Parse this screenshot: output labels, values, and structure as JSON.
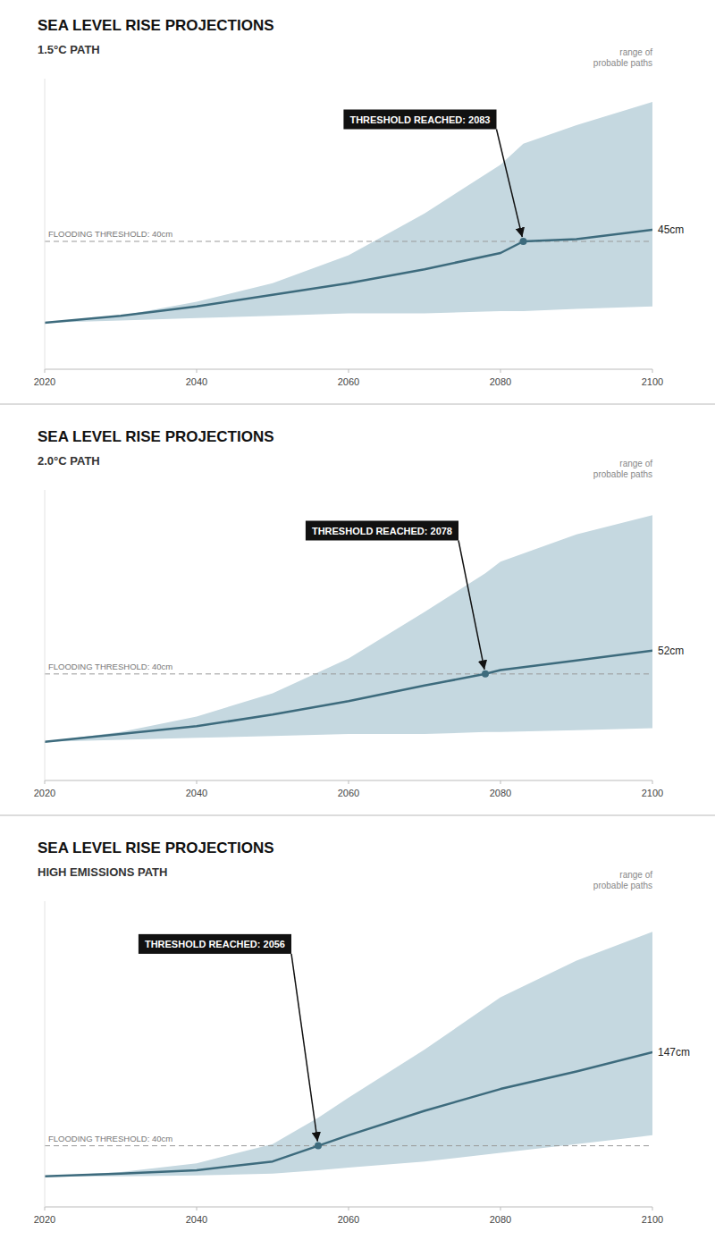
{
  "chart_data": [
    {
      "type": "line",
      "title": "SEA LEVEL RISE PROJECTIONS",
      "subtitle": "1.5°C PATH",
      "x": [
        2020,
        2030,
        2040,
        2050,
        2060,
        2070,
        2080,
        2083,
        2090,
        2100
      ],
      "xlim": [
        2020,
        2100
      ],
      "xticks": [
        2020,
        2040,
        2060,
        2080,
        2100
      ],
      "ylim": [
        -15,
        110
      ],
      "tick_labels": "x",
      "grid": false,
      "series": [
        {
          "values": [
            5,
            8,
            12,
            17,
            22,
            28,
            35,
            40,
            41,
            45
          ],
          "color": "#3d6b7d"
        }
      ],
      "band": {
        "lower": [
          5,
          6,
          7,
          8,
          9,
          9,
          10,
          10,
          11,
          12
        ],
        "upper": [
          5,
          8,
          14,
          22,
          34,
          52,
          73,
          82,
          90,
          100
        ],
        "color": "#c5d8e0",
        "label": "range of\nprobable paths"
      },
      "threshold": {
        "value": 40,
        "label": "FLOODING THRESHOLD: 40cm",
        "color": "#999999",
        "line_style": "dashed"
      },
      "annotations": [
        {
          "x": 2083,
          "y": 40,
          "text": "THRESHOLD REACHED: 2083",
          "marker": "dot"
        },
        {
          "x": 2100,
          "y": 45,
          "text": "45cm"
        }
      ]
    },
    {
      "type": "line",
      "title": "SEA LEVEL RISE PROJECTIONS",
      "subtitle": "2.0°C PATH",
      "x": [
        2020,
        2030,
        2040,
        2050,
        2060,
        2070,
        2078,
        2080,
        2090,
        2100
      ],
      "xlim": [
        2020,
        2100
      ],
      "xticks": [
        2020,
        2040,
        2060,
        2080,
        2100
      ],
      "ylim": [
        -15,
        135
      ],
      "tick_labels": "x",
      "grid": false,
      "series": [
        {
          "values": [
            5,
            9,
            13,
            19,
            26,
            34,
            40,
            42,
            47,
            52
          ],
          "color": "#3d6b7d"
        }
      ],
      "band": {
        "lower": [
          5,
          6,
          7,
          8,
          9,
          9,
          10,
          10,
          11,
          12
        ],
        "upper": [
          5,
          10,
          18,
          30,
          48,
          72,
          92,
          98,
          112,
          122
        ],
        "color": "#c5d8e0",
        "label": "range of\nprobable paths"
      },
      "threshold": {
        "value": 40,
        "label": "FLOODING THRESHOLD: 40cm",
        "color": "#999999",
        "line_style": "dashed"
      },
      "annotations": [
        {
          "x": 2078,
          "y": 40,
          "text": "THRESHOLD REACHED: 2078",
          "marker": "dot"
        },
        {
          "x": 2100,
          "y": 52,
          "text": "52cm"
        }
      ]
    },
    {
      "type": "line",
      "title": "SEA LEVEL RISE PROJECTIONS",
      "subtitle": "HIGH EMISSIONS PATH",
      "x": [
        2020,
        2030,
        2040,
        2050,
        2056,
        2060,
        2070,
        2080,
        2090,
        2100
      ],
      "xlim": [
        2020,
        2100
      ],
      "xticks": [
        2020,
        2040,
        2060,
        2080,
        2100
      ],
      "ylim": [
        -30,
        320
      ],
      "tick_labels": "x",
      "grid": false,
      "series": [
        {
          "values": [
            5,
            8,
            12,
            22,
            40,
            52,
            80,
            105,
            125,
            147
          ],
          "color": "#3d6b7d"
        }
      ],
      "band": {
        "lower": [
          5,
          5,
          6,
          8,
          12,
          15,
          22,
          32,
          42,
          52
        ],
        "upper": [
          5,
          10,
          20,
          42,
          72,
          95,
          150,
          210,
          252,
          285
        ],
        "color": "#c5d8e0",
        "label": "range of\nprobable paths"
      },
      "threshold": {
        "value": 40,
        "label": "FLOODING THRESHOLD: 40cm",
        "color": "#999999",
        "line_style": "dashed"
      },
      "annotations": [
        {
          "x": 2056,
          "y": 40,
          "text": "THRESHOLD REACHED: 2056",
          "marker": "dot"
        },
        {
          "x": 2100,
          "y": 147,
          "text": "147cm"
        }
      ]
    }
  ]
}
